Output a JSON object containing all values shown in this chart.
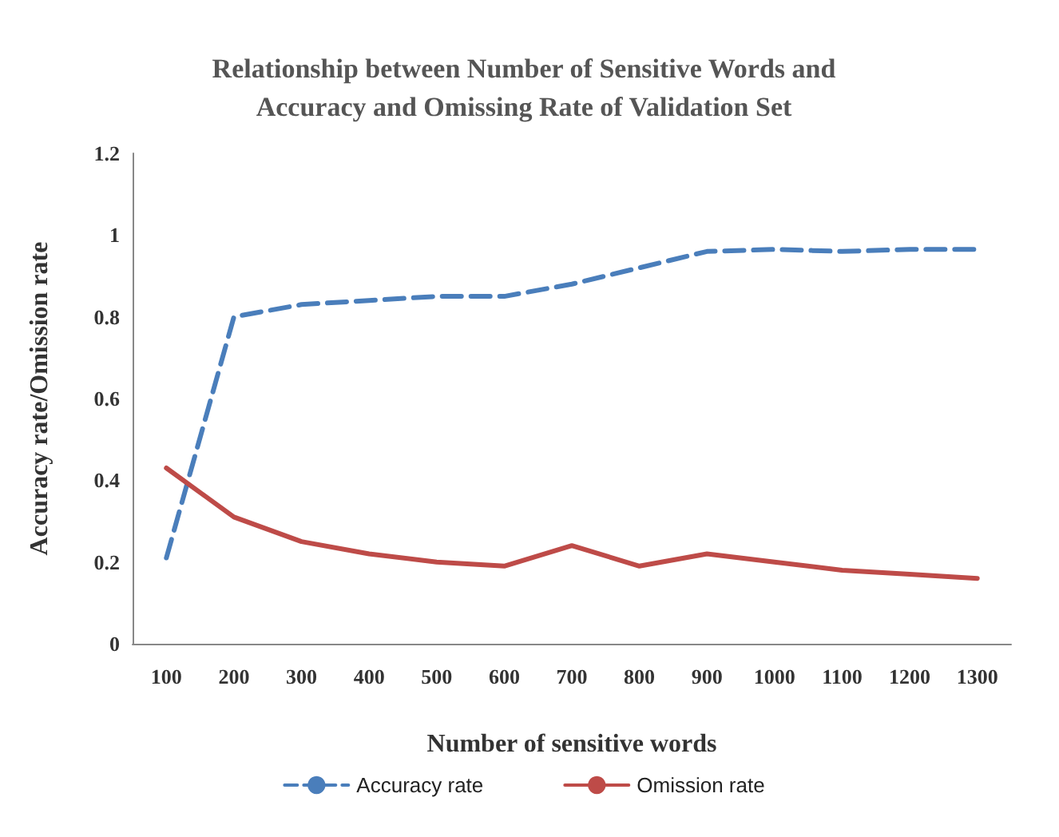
{
  "chart_data": {
    "type": "line",
    "title": "Relationship between Number of Sensitive Words and\nAccuracy and Omissing Rate of Validation Set",
    "xlabel": "Number of sensitive words",
    "ylabel": "Accuracy rate/Omission rate",
    "categories": [
      "100",
      "200",
      "300",
      "400",
      "500",
      "600",
      "700",
      "800",
      "900",
      "1000",
      "1100",
      "1200",
      "1300"
    ],
    "series": [
      {
        "name": "Accuracy rate",
        "color": "#4a7ebb",
        "line_style": "dashed",
        "values": [
          0.21,
          0.8,
          0.83,
          0.84,
          0.85,
          0.85,
          0.88,
          0.92,
          0.96,
          0.965,
          0.96,
          0.965,
          0.965
        ]
      },
      {
        "name": "Omission rate",
        "color": "#be4b48",
        "line_style": "solid",
        "values": [
          0.43,
          0.31,
          0.25,
          0.22,
          0.2,
          0.19,
          0.24,
          0.19,
          0.22,
          0.2,
          0.18,
          0.17,
          0.16
        ]
      }
    ],
    "ylim": [
      0,
      1.2
    ],
    "yticks": [
      0,
      0.2,
      0.4,
      0.6,
      0.8,
      1,
      1.2
    ],
    "grid": false,
    "legend": "bottom",
    "marker": "none"
  }
}
